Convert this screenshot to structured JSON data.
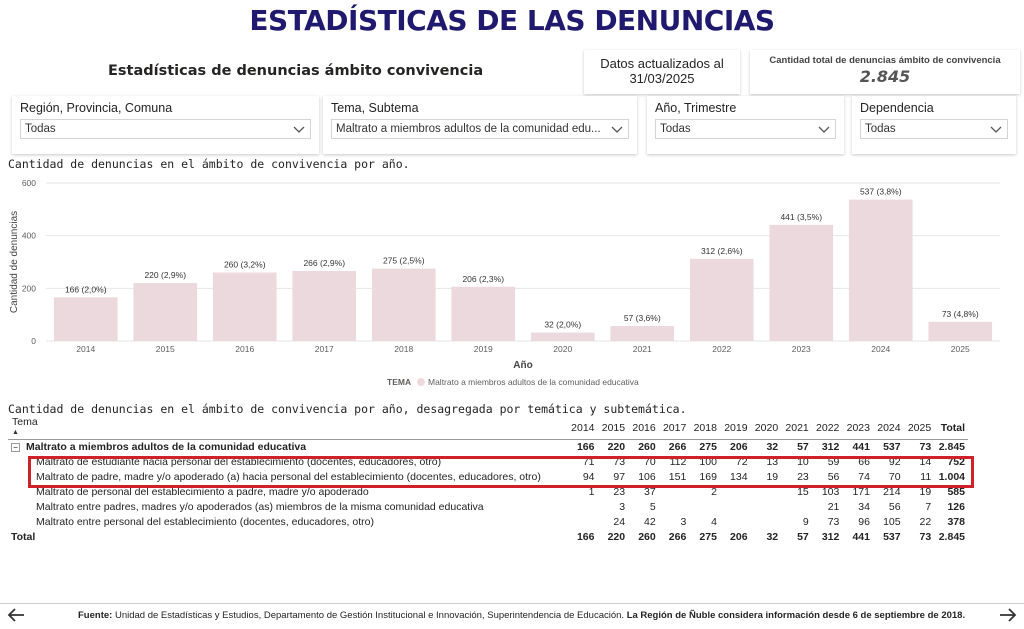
{
  "header": {
    "title": "ESTADÍSTICAS DE LAS DENUNCIAS",
    "subtitle": "Estadísticas de denuncias ámbito convivencia"
  },
  "cards": {
    "updated_line1": "Datos actualizados al",
    "updated_line2": "31/03/2025",
    "total_label": "Cantidad total de denuncias ámbito de convivencia",
    "total_value": "2.845"
  },
  "filters": [
    {
      "label": "Región, Provincia, Comuna",
      "value": "Todas"
    },
    {
      "label": "Tema, Subtema",
      "value": "Maltrato a miembros adultos de la comunidad edu..."
    },
    {
      "label": "Año, Trimestre",
      "value": "Todas"
    },
    {
      "label": "Dependencia",
      "value": "Todas"
    }
  ],
  "chart_title": "Cantidad de denuncias en el ámbito de convivencia por año.",
  "chart_data": {
    "type": "bar",
    "categories": [
      "2014",
      "2015",
      "2016",
      "2017",
      "2018",
      "2019",
      "2020",
      "2021",
      "2022",
      "2023",
      "2024",
      "2025"
    ],
    "values": [
      166,
      220,
      260,
      266,
      275,
      206,
      32,
      57,
      312,
      441,
      537,
      73
    ],
    "data_labels": [
      "166 (2,0%)",
      "220 (2,9%)",
      "260 (3,2%)",
      "266 (2,9%)",
      "275 (2,5%)",
      "206 (2,3%)",
      "32 (2,0%)",
      "57 (3,6%)",
      "312 (2,6%)",
      "441 (3,5%)",
      "537 (3,8%)",
      "73 (4,8%)"
    ],
    "xlabel": "Año",
    "ylabel": "Cantidad de denuncias",
    "ylim": [
      0,
      600
    ],
    "yticks": [
      "0",
      "200",
      "400",
      "600"
    ],
    "grid": true,
    "legend_title": "TEMA",
    "series": [
      {
        "name": "Maltrato a miembros adultos de la comunidad educativa",
        "color": "#ecd9dd"
      }
    ]
  },
  "table": {
    "title": "Cantidad de denuncias en el ámbito de convivencia por año, desagregada por temática y subtemática.",
    "headers": [
      "Tema",
      "2014",
      "2015",
      "2016",
      "2017",
      "2018",
      "2019",
      "2020",
      "2021",
      "2022",
      "2023",
      "2024",
      "2025",
      "Total"
    ],
    "rows": [
      {
        "type": "parent",
        "cells": [
          "Maltrato a miembros adultos de la comunidad educativa",
          "166",
          "220",
          "260",
          "266",
          "275",
          "206",
          "32",
          "57",
          "312",
          "441",
          "537",
          "73",
          "2.845"
        ]
      },
      {
        "type": "child",
        "cells": [
          "Maltrato de estudiante hacia personal del establecimiento (docentes, educadores, otro)",
          "71",
          "73",
          "70",
          "112",
          "100",
          "72",
          "13",
          "10",
          "59",
          "66",
          "92",
          "14",
          "752"
        ]
      },
      {
        "type": "child",
        "cells": [
          "Maltrato de padre, madre y/o apoderado (a) hacia personal del establecimiento (docentes, educadores, otro)",
          "94",
          "97",
          "106",
          "151",
          "169",
          "134",
          "19",
          "23",
          "56",
          "74",
          "70",
          "11",
          "1.004"
        ]
      },
      {
        "type": "child",
        "cells": [
          "Maltrato de personal del establecimiento a padre, madre y/o apoderado",
          "1",
          "23",
          "37",
          "",
          "2",
          "",
          "",
          "15",
          "103",
          "171",
          "214",
          "19",
          "585"
        ]
      },
      {
        "type": "child",
        "cells": [
          "Maltrato entre padres, madres y/o apoderados (as) miembros de la misma comunidad educativa",
          "",
          "3",
          "5",
          "",
          "",
          "",
          "",
          "",
          "21",
          "34",
          "56",
          "7",
          "126"
        ]
      },
      {
        "type": "child",
        "cells": [
          "Maltrato entre personal del establecimiento (docentes, educadores, otro)",
          "",
          "24",
          "42",
          "3",
          "4",
          "",
          "",
          "9",
          "73",
          "96",
          "105",
          "22",
          "378"
        ]
      },
      {
        "type": "total",
        "cells": [
          "Total",
          "166",
          "220",
          "260",
          "266",
          "275",
          "206",
          "32",
          "57",
          "312",
          "441",
          "537",
          "73",
          "2.845"
        ]
      }
    ]
  },
  "footer": {
    "source_label": "Fuente:",
    "source_text": "Unidad de Estadísticas y Estudios, Departamento de Gestión Institucional e Innovación, Superintendencia de Educación.",
    "note": "La Región de Ñuble considera información desde 6  de septiembre de 2018."
  },
  "icons": {
    "chevron": "chevron-down-icon",
    "back": "arrow-left-icon",
    "forward": "arrow-right-icon"
  }
}
